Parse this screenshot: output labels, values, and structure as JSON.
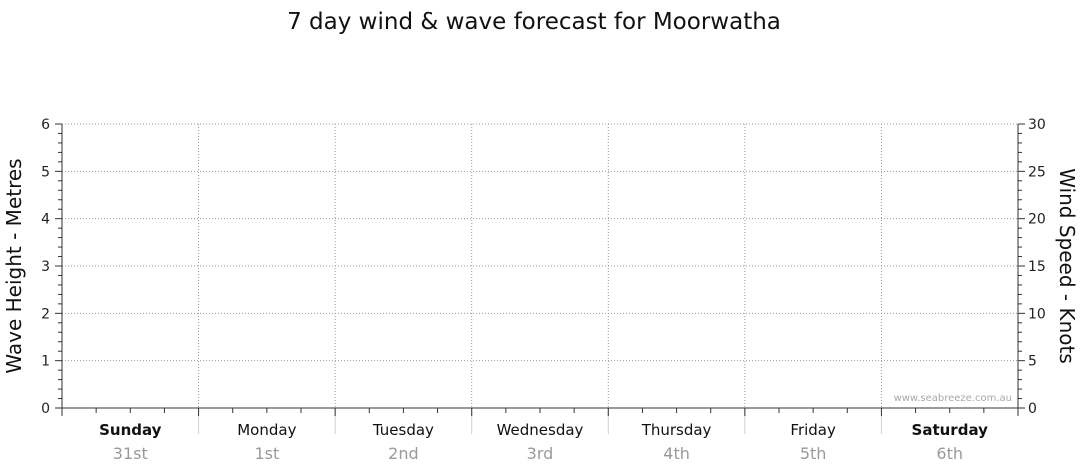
{
  "chart_data": {
    "type": "line",
    "title": "7 day wind & wave forecast for Moorwatha",
    "left_axis": {
      "label": "Wave Height - Metres",
      "ylim": [
        0,
        6
      ],
      "ticks": [
        "0",
        "1",
        "2",
        "3",
        "4",
        "5",
        "6"
      ]
    },
    "right_axis": {
      "label": "Wind Speed - Knots",
      "ylim": [
        0,
        30
      ],
      "ticks": [
        "0",
        "5",
        "10",
        "15",
        "20",
        "25",
        "30"
      ]
    },
    "days": [
      {
        "name": "Sunday",
        "date": "31st",
        "bold": true
      },
      {
        "name": "Monday",
        "date": "1st",
        "bold": false
      },
      {
        "name": "Tuesday",
        "date": "2nd",
        "bold": false
      },
      {
        "name": "Wednesday",
        "date": "3rd",
        "bold": false
      },
      {
        "name": "Thursday",
        "date": "4th",
        "bold": false
      },
      {
        "name": "Friday",
        "date": "5th",
        "bold": false
      },
      {
        "name": "Saturday",
        "date": "6th",
        "bold": true
      }
    ],
    "grid": true,
    "series": [],
    "watermark": "www.seabreeze.com.au"
  }
}
